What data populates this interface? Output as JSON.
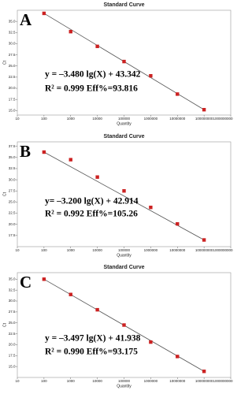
{
  "chart_data": [
    {
      "type": "scatter",
      "title": "Standard Curve",
      "xlabel": "Quantity",
      "ylabel": "Ct",
      "panel_label": "A",
      "annotations": [
        "y = –3.480 lg(X) + 43.342",
        "R² = 0.999  Eff%=93.816"
      ],
      "x": [
        100,
        1000,
        10000,
        100000,
        1000000,
        10000000,
        100000000
      ],
      "values": [
        36.8,
        32.7,
        29.4,
        26.0,
        22.8,
        18.7,
        15.2
      ],
      "color": "#cc2222",
      "log_x": true,
      "grid": false,
      "xlim": [
        10,
        1000000000
      ],
      "ylim": [
        14,
        37.5
      ],
      "xticks": [
        10,
        100,
        1000,
        10000,
        100000,
        1000000,
        10000000,
        100000000,
        1000000000
      ],
      "yticks": [
        {
          "value": 15,
          "label": "15.0"
        },
        {
          "value": 17.5,
          "label": "17.5"
        },
        {
          "value": 20,
          "label": "20.0"
        },
        {
          "value": 22.5,
          "label": "22.5"
        },
        {
          "value": 25,
          "label": "25.0"
        },
        {
          "value": 27.5,
          "label": "27.5"
        },
        {
          "value": 30,
          "label": "30.0"
        },
        {
          "value": 32.5,
          "label": "32.5"
        },
        {
          "value": 35,
          "label": "35.0"
        }
      ]
    },
    {
      "type": "scatter",
      "title": "Standard Curve",
      "xlabel": "Quantity",
      "ylabel": "Ct",
      "panel_label": "B",
      "annotations": [
        "y= –3.200 lg(X) + 42.914",
        "R² = 0.992  Eff%=105.26"
      ],
      "x": [
        100,
        1000,
        10000,
        100000,
        1000000,
        10000000,
        100000000
      ],
      "values": [
        36.2,
        34.5,
        30.6,
        27.5,
        23.8,
        20.1,
        16.5
      ],
      "color": "#cc2222",
      "log_x": true,
      "grid": false,
      "xlim": [
        10,
        1000000000
      ],
      "ylim": [
        15,
        38.5
      ],
      "xticks": [
        10,
        100,
        1000,
        10000,
        100000,
        1000000,
        10000000,
        100000000,
        1000000000
      ],
      "yticks": [
        {
          "value": 17.5,
          "label": "17.5"
        },
        {
          "value": 20,
          "label": "20.0"
        },
        {
          "value": 22.5,
          "label": "22.5"
        },
        {
          "value": 25,
          "label": "25.0"
        },
        {
          "value": 27.5,
          "label": "27.5"
        },
        {
          "value": 30,
          "label": "30.0"
        },
        {
          "value": 32.5,
          "label": "32.5"
        },
        {
          "value": 35,
          "label": "35.0"
        },
        {
          "value": 37.5,
          "label": "37.5"
        }
      ]
    },
    {
      "type": "scatter",
      "title": "Standard Curve",
      "xlabel": "Quantity",
      "ylabel": "Ct",
      "panel_label": "C",
      "annotations": [
        "y = –3.497 lg(X) + 41.938",
        "R² = 0.990  Eff%=93.175"
      ],
      "x": [
        100,
        1000,
        10000,
        100000,
        1000000,
        10000000,
        100000000
      ],
      "values": [
        35.0,
        31.5,
        28.0,
        24.5,
        20.6,
        17.3,
        13.9
      ],
      "color": "#cc2222",
      "log_x": true,
      "grid": false,
      "xlim": [
        10,
        1000000000
      ],
      "ylim": [
        12.5,
        36.5
      ],
      "xticks": [
        10,
        100,
        1000,
        10000,
        100000,
        1000000,
        10000000,
        100000000,
        1000000000
      ],
      "yticks": [
        {
          "value": 15,
          "label": "15.0"
        },
        {
          "value": 17.5,
          "label": "17.5"
        },
        {
          "value": 20,
          "label": "20.0"
        },
        {
          "value": 22.5,
          "label": "22.5"
        },
        {
          "value": 25,
          "label": "25.0"
        },
        {
          "value": 27.5,
          "label": "27.5"
        },
        {
          "value": 30,
          "label": "30.0"
        },
        {
          "value": 32.5,
          "label": "32.5"
        },
        {
          "value": 35,
          "label": "35.0"
        }
      ]
    }
  ]
}
